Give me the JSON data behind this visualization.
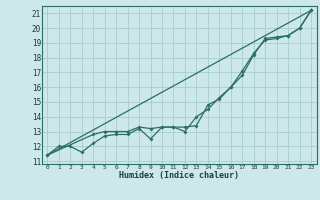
{
  "xlabel": "Humidex (Indice chaleur)",
  "bg_color": "#cce8e8",
  "line_color": "#2a6e68",
  "grid_color": "#a8cccc",
  "xlim": [
    -0.5,
    23.5
  ],
  "ylim": [
    10.8,
    21.5
  ],
  "xticks": [
    0,
    1,
    2,
    3,
    4,
    5,
    6,
    7,
    8,
    9,
    10,
    11,
    12,
    13,
    14,
    15,
    16,
    17,
    18,
    19,
    20,
    21,
    22,
    23
  ],
  "yticks": [
    11,
    12,
    13,
    14,
    15,
    16,
    17,
    18,
    19,
    20,
    21
  ],
  "line1_x": [
    0,
    1,
    2,
    3,
    4,
    5,
    6,
    7,
    8,
    9,
    10,
    11,
    12,
    13,
    14,
    15,
    16,
    17,
    18,
    19,
    20,
    21,
    22,
    23
  ],
  "line1_y": [
    11.4,
    12.0,
    12.0,
    11.6,
    12.2,
    12.7,
    12.8,
    12.8,
    13.2,
    12.5,
    13.3,
    13.3,
    13.0,
    14.0,
    14.5,
    15.3,
    16.0,
    16.8,
    18.2,
    19.3,
    19.4,
    19.5,
    20.0,
    21.2
  ],
  "line2_x": [
    0,
    4,
    5,
    6,
    7,
    8,
    9,
    10,
    11,
    12,
    13,
    14,
    15,
    16,
    17,
    18,
    19,
    20,
    21,
    22,
    23
  ],
  "line2_y": [
    11.4,
    12.8,
    13.0,
    13.0,
    13.0,
    13.3,
    13.2,
    13.3,
    13.3,
    13.3,
    13.4,
    14.8,
    15.2,
    16.0,
    17.1,
    18.3,
    19.2,
    19.3,
    19.5,
    20.0,
    21.2
  ],
  "line3_x": [
    0,
    23
  ],
  "line3_y": [
    11.4,
    21.2
  ]
}
